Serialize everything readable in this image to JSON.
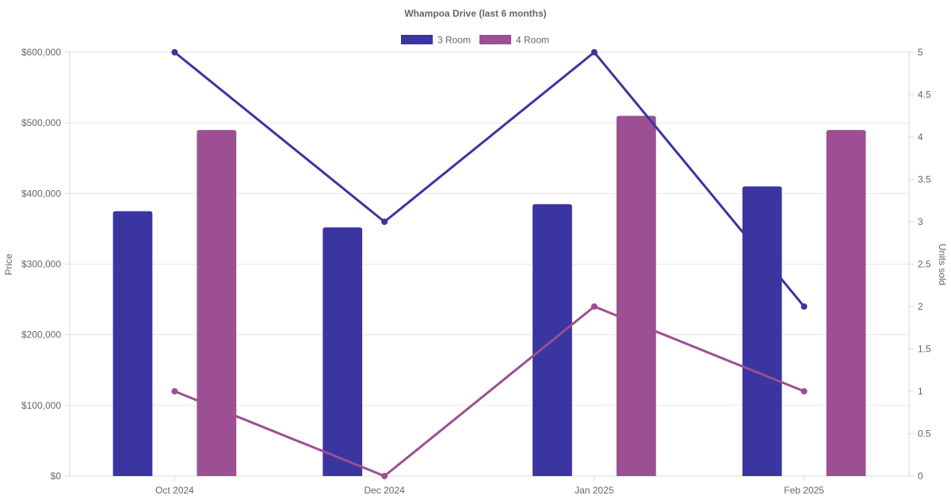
{
  "chart_data": {
    "type": "bar",
    "title": "Whampoa Drive (last 6 months)",
    "categories": [
      "Oct 2024",
      "Dec 2024",
      "Jan 2025",
      "Feb 2025"
    ],
    "series": [
      {
        "name": "3 Room",
        "kind": "bar",
        "axis": "left",
        "color": "#3a35a0",
        "values": [
          375000,
          352000,
          385000,
          410000
        ]
      },
      {
        "name": "4 Room",
        "kind": "bar",
        "axis": "left",
        "color": "#9c4f93",
        "values": [
          490000,
          null,
          510000,
          490000
        ]
      },
      {
        "name": "3 Room",
        "kind": "line",
        "axis": "right",
        "color": "#3a35a0",
        "values": [
          5,
          3,
          5,
          2
        ]
      },
      {
        "name": "4 Room",
        "kind": "line",
        "axis": "right",
        "color": "#9c4f93",
        "values": [
          1,
          0,
          2,
          1
        ]
      }
    ],
    "y_left": {
      "label": "Price",
      "range": [
        0,
        600000
      ],
      "ticks": [
        "$0",
        "$100,000",
        "$200,000",
        "$300,000",
        "$400,000",
        "$500,000",
        "$600,000"
      ]
    },
    "y_right": {
      "label": "Units sold",
      "range": [
        0,
        5
      ],
      "ticks": [
        "0",
        "0.5",
        "1",
        "1.5",
        "2",
        "2.5",
        "3",
        "3.5",
        "4",
        "4.5",
        "5"
      ]
    },
    "legend": [
      {
        "label": "3 Room",
        "color": "#3a35a0"
      },
      {
        "label": "4 Room",
        "color": "#9c4f93"
      }
    ],
    "legend_position": "top",
    "grid": true
  }
}
